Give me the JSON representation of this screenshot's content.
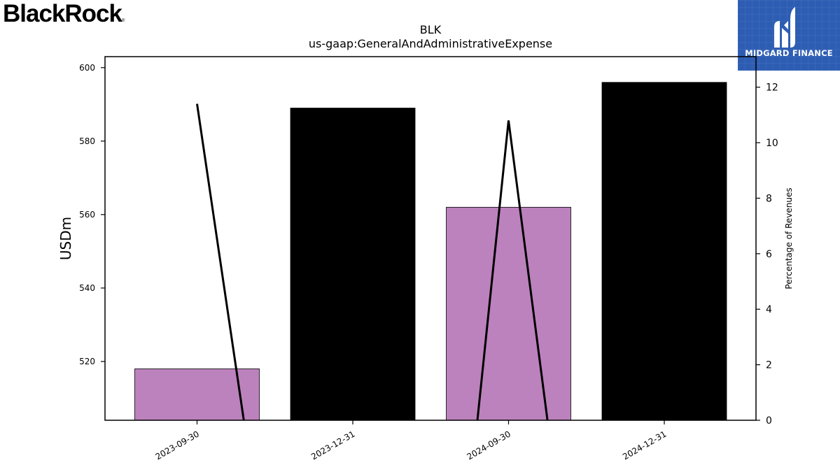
{
  "branding": {
    "left_logo": "BlackRock",
    "left_logo_mark": "®",
    "right_logo_text": "MIDGARD FINANCE",
    "right_logo_bg": "#2d5db3"
  },
  "chart_data": {
    "type": "bar",
    "title": "BLK",
    "subtitle": "us-gaap:GeneralAndAdministrativeExpense",
    "ylabel": "USDm",
    "y2label": "Percentage of Revenues",
    "categories": [
      "2023-09-30",
      "2023-12-31",
      "2024-09-30",
      "2024-12-31"
    ],
    "series": [
      {
        "values": [
          518,
          589,
          562,
          596
        ],
        "colors": [
          "#bc82bd",
          "#000000",
          "#bc82bd",
          "#000000"
        ]
      }
    ],
    "line_segments": [
      {
        "points": [
          [
            "2023-09-30",
            11.4
          ],
          [
            0.3,
            0
          ]
        ]
      },
      {
        "points": [
          [
            1.8,
            0
          ],
          [
            "2024-09-30",
            10.8
          ],
          [
            2.25,
            0
          ]
        ]
      }
    ],
    "ylim": [
      504,
      603
    ],
    "y2lim": [
      0,
      13.1
    ],
    "yticks": [
      520,
      540,
      560,
      580,
      600
    ],
    "y2ticks": [
      0,
      2,
      4,
      6,
      8,
      10,
      12
    ],
    "grid": false
  }
}
